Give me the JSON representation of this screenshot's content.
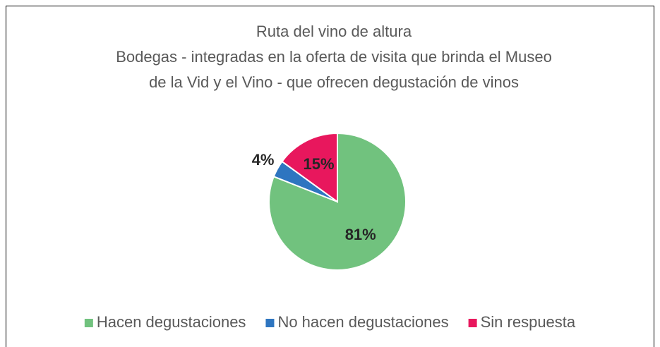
{
  "chart_data": {
    "type": "pie",
    "title": "Ruta del vino de altura",
    "subtitle": [
      "Bodegas - integradas en la oferta de visita que brinda el Museo",
      "de la Vid y el Vino - que ofrecen degustación de vinos"
    ],
    "categories": [
      "Hacen degustaciones",
      "No hacen degustaciones",
      "Sin respuesta"
    ],
    "values": [
      81,
      4,
      15
    ],
    "value_labels": [
      "81%",
      "4%",
      "15%"
    ],
    "colors": [
      "#71c27e",
      "#2e75c0",
      "#e8175d"
    ],
    "legend": "bottom"
  }
}
